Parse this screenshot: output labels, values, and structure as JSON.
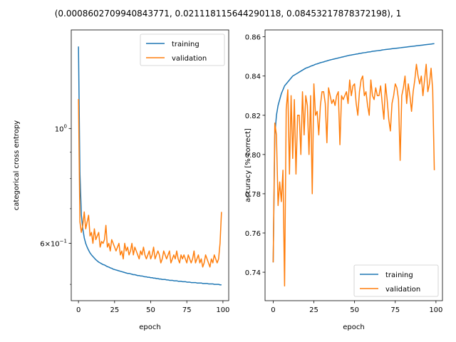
{
  "figure": {
    "title": "(0.0008602709940843771, 0.021118115644290118, 0.08453217878372198), 1"
  },
  "chart_data": [
    {
      "type": "line",
      "xlabel": "epoch",
      "ylabel": "categorical cross entropy",
      "yscale": "log",
      "xlim": [
        -5,
        104
      ],
      "ylim": [
        0.465,
        1.55
      ],
      "xticks": [
        0,
        25,
        50,
        75,
        100
      ],
      "yticks": [
        {
          "value": 1.0,
          "base": "10",
          "exp": "0"
        },
        {
          "value": 0.6,
          "mant": "6",
          "base": "10",
          "exp": "−1"
        }
      ],
      "legend": {
        "position": "top-right",
        "entries": [
          "training",
          "validation"
        ]
      },
      "series": [
        {
          "name": "training",
          "color": "#1f77b4",
          "values": [
            1.44,
            0.82,
            0.68,
            0.64,
            0.615,
            0.6,
            0.59,
            0.582,
            0.575,
            0.57,
            0.566,
            0.562,
            0.558,
            0.555,
            0.552,
            0.55,
            0.548,
            0.546,
            0.545,
            0.543,
            0.541,
            0.54,
            0.538,
            0.537,
            0.535,
            0.534,
            0.533,
            0.532,
            0.531,
            0.53,
            0.529,
            0.528,
            0.527,
            0.526,
            0.525,
            0.525,
            0.524,
            0.523,
            0.522,
            0.522,
            0.521,
            0.52,
            0.52,
            0.519,
            0.519,
            0.518,
            0.517,
            0.517,
            0.516,
            0.516,
            0.515,
            0.515,
            0.514,
            0.514,
            0.513,
            0.513,
            0.512,
            0.512,
            0.511,
            0.511,
            0.511,
            0.51,
            0.51,
            0.509,
            0.509,
            0.509,
            0.508,
            0.508,
            0.508,
            0.507,
            0.507,
            0.507,
            0.506,
            0.506,
            0.506,
            0.505,
            0.505,
            0.505,
            0.504,
            0.504,
            0.504,
            0.504,
            0.503,
            0.503,
            0.503,
            0.503,
            0.502,
            0.502,
            0.502,
            0.502,
            0.501,
            0.501,
            0.501,
            0.501,
            0.5,
            0.5,
            0.5,
            0.5,
            0.499,
            0.499
          ]
        },
        {
          "name": "validation",
          "color": "#ff7f0e",
          "values": [
            1.14,
            0.66,
            0.63,
            0.65,
            0.69,
            0.64,
            0.66,
            0.68,
            0.62,
            0.63,
            0.6,
            0.64,
            0.61,
            0.62,
            0.63,
            0.59,
            0.605,
            0.6,
            0.61,
            0.65,
            0.59,
            0.6,
            0.58,
            0.61,
            0.6,
            0.59,
            0.58,
            0.59,
            0.6,
            0.57,
            0.58,
            0.56,
            0.6,
            0.58,
            0.59,
            0.57,
            0.58,
            0.6,
            0.57,
            0.59,
            0.58,
            0.57,
            0.56,
            0.58,
            0.57,
            0.59,
            0.57,
            0.56,
            0.57,
            0.58,
            0.56,
            0.57,
            0.59,
            0.56,
            0.57,
            0.58,
            0.57,
            0.55,
            0.56,
            0.58,
            0.57,
            0.56,
            0.57,
            0.58,
            0.55,
            0.56,
            0.57,
            0.56,
            0.58,
            0.56,
            0.55,
            0.57,
            0.56,
            0.57,
            0.56,
            0.55,
            0.57,
            0.56,
            0.55,
            0.56,
            0.58,
            0.55,
            0.56,
            0.57,
            0.55,
            0.56,
            0.54,
            0.55,
            0.57,
            0.56,
            0.55,
            0.54,
            0.56,
            0.55,
            0.57,
            0.56,
            0.55,
            0.56,
            0.6,
            0.69
          ]
        }
      ]
    },
    {
      "type": "line",
      "xlabel": "epoch",
      "ylabel": "accuracy [% correct]",
      "yscale": "linear",
      "xlim": [
        -5,
        104
      ],
      "ylim": [
        0.7255,
        0.8635
      ],
      "xticks": [
        0,
        25,
        50,
        75,
        100
      ],
      "yticks": [
        0.74,
        0.76,
        0.78,
        0.8,
        0.82,
        0.84,
        0.86
      ],
      "legend": {
        "position": "bottom-right",
        "entries": [
          "training",
          "validation"
        ]
      },
      "series": [
        {
          "name": "training",
          "color": "#1f77b4",
          "values": [
            0.745,
            0.81,
            0.82,
            0.825,
            0.828,
            0.831,
            0.833,
            0.835,
            0.836,
            0.837,
            0.838,
            0.839,
            0.84,
            0.8405,
            0.841,
            0.8415,
            0.842,
            0.8425,
            0.843,
            0.8435,
            0.844,
            0.8443,
            0.8446,
            0.845,
            0.8453,
            0.8456,
            0.846,
            0.8462,
            0.8465,
            0.8468,
            0.847,
            0.8472,
            0.8475,
            0.8477,
            0.848,
            0.8482,
            0.8484,
            0.8486,
            0.8488,
            0.849,
            0.8492,
            0.8494,
            0.8496,
            0.8498,
            0.85,
            0.8502,
            0.8504,
            0.8506,
            0.8507,
            0.8509,
            0.851,
            0.8512,
            0.8513,
            0.8515,
            0.8516,
            0.8518,
            0.8519,
            0.852,
            0.8522,
            0.8523,
            0.8524,
            0.8526,
            0.8527,
            0.8528,
            0.8529,
            0.853,
            0.8531,
            0.8533,
            0.8534,
            0.8535,
            0.8536,
            0.8537,
            0.8538,
            0.8539,
            0.854,
            0.8541,
            0.8542,
            0.8543,
            0.8544,
            0.8545,
            0.8546,
            0.8547,
            0.8548,
            0.8549,
            0.855,
            0.8551,
            0.8552,
            0.8553,
            0.8554,
            0.8555,
            0.8556,
            0.8557,
            0.8558,
            0.8559,
            0.856,
            0.8561,
            0.8562,
            0.8563,
            0.8564,
            0.8565
          ]
        },
        {
          "name": "validation",
          "color": "#ff7f0e",
          "values": [
            0.745,
            0.816,
            0.81,
            0.774,
            0.786,
            0.776,
            0.792,
            0.733,
            0.823,
            0.833,
            0.79,
            0.83,
            0.798,
            0.828,
            0.79,
            0.82,
            0.82,
            0.8,
            0.832,
            0.81,
            0.83,
            0.825,
            0.8,
            0.83,
            0.78,
            0.836,
            0.82,
            0.822,
            0.81,
            0.825,
            0.832,
            0.832,
            0.826,
            0.806,
            0.834,
            0.83,
            0.826,
            0.828,
            0.825,
            0.83,
            0.832,
            0.805,
            0.83,
            0.828,
            0.83,
            0.832,
            0.826,
            0.838,
            0.83,
            0.835,
            0.836,
            0.826,
            0.82,
            0.832,
            0.838,
            0.84,
            0.83,
            0.832,
            0.825,
            0.82,
            0.838,
            0.83,
            0.828,
            0.834,
            0.83,
            0.83,
            0.835,
            0.826,
            0.818,
            0.836,
            0.828,
            0.818,
            0.812,
            0.826,
            0.83,
            0.836,
            0.834,
            0.828,
            0.797,
            0.83,
            0.834,
            0.84,
            0.826,
            0.836,
            0.83,
            0.822,
            0.832,
            0.838,
            0.846,
            0.84,
            0.836,
            0.84,
            0.83,
            0.838,
            0.846,
            0.832,
            0.836,
            0.844,
            0.833,
            0.792
          ]
        }
      ]
    }
  ]
}
